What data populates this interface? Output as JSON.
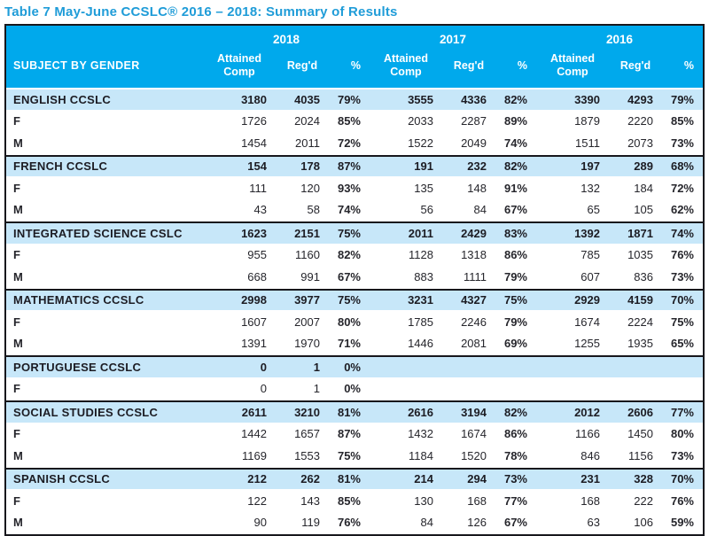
{
  "title": "Table 7 May-June CCSLC® 2016 – 2018: Summary of Results",
  "colors": {
    "title_blue": "#1f9cd8",
    "header_blue": "#00a9ec",
    "subject_row_blue": "#c7e7f9",
    "border_dark": "#17171c"
  },
  "table": {
    "subject_header": "SUBJECT BY GENDER",
    "year_groups": [
      "2018",
      "2017",
      "2016"
    ],
    "sub_columns": [
      "Attained Comp",
      "Reg'd",
      "%"
    ],
    "groups": [
      {
        "rows": [
          {
            "label": "ENGLISH CCSLC",
            "type": "subject",
            "values": [
              "3180",
              "4035",
              "79%",
              "3555",
              "4336",
              "82%",
              "3390",
              "4293",
              "79%"
            ]
          },
          {
            "label": "F",
            "type": "gender",
            "values": [
              "1726",
              "2024",
              "85%",
              "2033",
              "2287",
              "89%",
              "1879",
              "2220",
              "85%"
            ]
          },
          {
            "label": "M",
            "type": "gender",
            "values": [
              "1454",
              "2011",
              "72%",
              "1522",
              "2049",
              "74%",
              "1511",
              "2073",
              "73%"
            ]
          }
        ]
      },
      {
        "rows": [
          {
            "label": "FRENCH CCSLC",
            "type": "subject",
            "values": [
              "154",
              "178",
              "87%",
              "191",
              "232",
              "82%",
              "197",
              "289",
              "68%"
            ]
          },
          {
            "label": "F",
            "type": "gender",
            "values": [
              "111",
              "120",
              "93%",
              "135",
              "148",
              "91%",
              "132",
              "184",
              "72%"
            ]
          },
          {
            "label": "M",
            "type": "gender",
            "values": [
              "43",
              "58",
              "74%",
              "56",
              "84",
              "67%",
              "65",
              "105",
              "62%"
            ]
          }
        ]
      },
      {
        "rows": [
          {
            "label": "INTEGRATED SCIENCE CSLC",
            "type": "subject",
            "values": [
              "1623",
              "2151",
              "75%",
              "2011",
              "2429",
              "83%",
              "1392",
              "1871",
              "74%"
            ]
          },
          {
            "label": "F",
            "type": "gender",
            "values": [
              "955",
              "1160",
              "82%",
              "1128",
              "1318",
              "86%",
              "785",
              "1035",
              "76%"
            ]
          },
          {
            "label": "M",
            "type": "gender",
            "values": [
              "668",
              "991",
              "67%",
              "883",
              "1111",
              "79%",
              "607",
              "836",
              "73%"
            ]
          }
        ]
      },
      {
        "rows": [
          {
            "label": "MATHEMATICS CCSLC",
            "type": "subject",
            "values": [
              "2998",
              "3977",
              "75%",
              "3231",
              "4327",
              "75%",
              "2929",
              "4159",
              "70%"
            ]
          },
          {
            "label": "F",
            "type": "gender",
            "values": [
              "1607",
              "2007",
              "80%",
              "1785",
              "2246",
              "79%",
              "1674",
              "2224",
              "75%"
            ]
          },
          {
            "label": "M",
            "type": "gender",
            "values": [
              "1391",
              "1970",
              "71%",
              "1446",
              "2081",
              "69%",
              "1255",
              "1935",
              "65%"
            ]
          }
        ]
      },
      {
        "rows": [
          {
            "label": "PORTUGUESE CCSLC",
            "type": "subject",
            "values": [
              "0",
              "1",
              "0%",
              "",
              "",
              "",
              "",
              "",
              ""
            ]
          },
          {
            "label": "F",
            "type": "gender",
            "values": [
              "0",
              "1",
              "0%",
              "",
              "",
              "",
              "",
              "",
              ""
            ]
          }
        ]
      },
      {
        "rows": [
          {
            "label": "SOCIAL STUDIES CCSLC",
            "type": "subject",
            "values": [
              "2611",
              "3210",
              "81%",
              "2616",
              "3194",
              "82%",
              "2012",
              "2606",
              "77%"
            ]
          },
          {
            "label": "F",
            "type": "gender",
            "values": [
              "1442",
              "1657",
              "87%",
              "1432",
              "1674",
              "86%",
              "1166",
              "1450",
              "80%"
            ]
          },
          {
            "label": "M",
            "type": "gender",
            "values": [
              "1169",
              "1553",
              "75%",
              "1184",
              "1520",
              "78%",
              "846",
              "1156",
              "73%"
            ]
          }
        ]
      },
      {
        "rows": [
          {
            "label": "SPANISH CCSLC",
            "type": "subject",
            "values": [
              "212",
              "262",
              "81%",
              "214",
              "294",
              "73%",
              "231",
              "328",
              "70%"
            ]
          },
          {
            "label": "F",
            "type": "gender",
            "values": [
              "122",
              "143",
              "85%",
              "130",
              "168",
              "77%",
              "168",
              "222",
              "76%"
            ]
          },
          {
            "label": "M",
            "type": "gender",
            "values": [
              "90",
              "119",
              "76%",
              "84",
              "126",
              "67%",
              "63",
              "106",
              "59%"
            ]
          }
        ]
      }
    ]
  }
}
